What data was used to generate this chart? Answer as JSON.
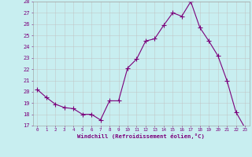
{
  "x": [
    0,
    1,
    2,
    3,
    4,
    5,
    6,
    7,
    8,
    9,
    10,
    11,
    12,
    13,
    14,
    15,
    16,
    17,
    18,
    19,
    20,
    21,
    22,
    23
  ],
  "y": [
    20.2,
    19.5,
    18.9,
    18.6,
    18.5,
    18.0,
    18.0,
    17.5,
    19.2,
    19.2,
    22.1,
    22.9,
    24.5,
    24.7,
    25.9,
    27.0,
    26.7,
    28.0,
    25.7,
    24.5,
    23.2,
    21.0,
    18.2,
    16.8
  ],
  "line_color": "#7b007b",
  "marker": "+",
  "marker_color": "#7b007b",
  "bg_color": "#c8eef0",
  "grid_color": "#c0c0c0",
  "xlabel": "Windchill (Refroidissement éolien,°C)",
  "xlabel_color": "#7b007b",
  "tick_color": "#7b007b",
  "ylim": [
    17,
    28
  ],
  "xlim": [
    -0.5,
    23.5
  ],
  "yticks": [
    17,
    18,
    19,
    20,
    21,
    22,
    23,
    24,
    25,
    26,
    27,
    28
  ],
  "xticks": [
    0,
    1,
    2,
    3,
    4,
    5,
    6,
    7,
    8,
    9,
    10,
    11,
    12,
    13,
    14,
    15,
    16,
    17,
    18,
    19,
    20,
    21,
    22,
    23
  ]
}
